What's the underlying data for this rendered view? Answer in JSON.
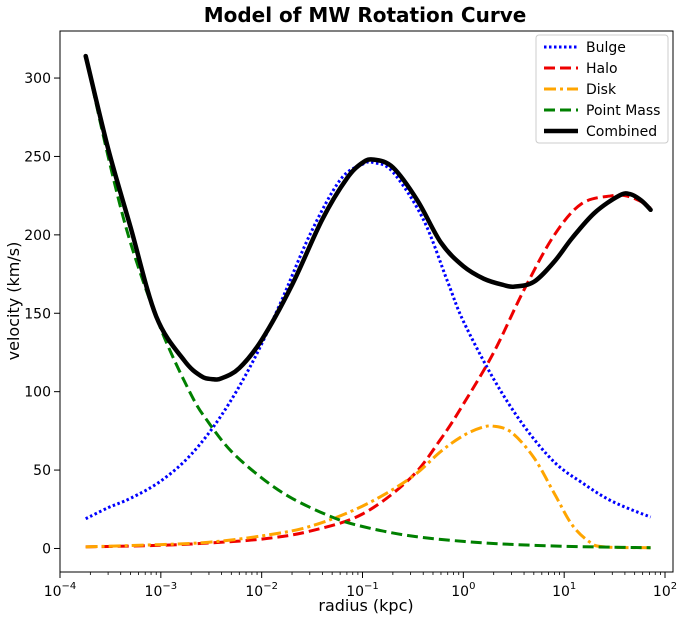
{
  "chart_data": {
    "type": "line",
    "title": "Model of MW Rotation Curve",
    "xlabel": "radius (kpc)",
    "ylabel": "velocity (km/s)",
    "xscale": "log",
    "xlim": [
      0.0001,
      120
    ],
    "ylim": [
      -15,
      330
    ],
    "x_ticks": [
      {
        "value": 0.0001,
        "base": "10",
        "exp": "−4"
      },
      {
        "value": 0.001,
        "base": "10",
        "exp": "−3"
      },
      {
        "value": 0.01,
        "base": "10",
        "exp": "−2"
      },
      {
        "value": 0.1,
        "base": "10",
        "exp": "−1"
      },
      {
        "value": 1,
        "base": "10",
        "exp": "0"
      },
      {
        "value": 10,
        "base": "10",
        "exp": "1"
      },
      {
        "value": 100,
        "base": "10",
        "exp": "2"
      }
    ],
    "y_ticks": [
      0,
      50,
      100,
      150,
      200,
      250,
      300
    ],
    "legend_position": "top-right",
    "grid": false,
    "series": [
      {
        "name": "Bulge",
        "color": "#0000ff",
        "style": "dotted",
        "width": 3,
        "points": [
          [
            0.00018,
            19
          ],
          [
            0.0003,
            26
          ],
          [
            0.0005,
            32
          ],
          [
            0.001,
            43
          ],
          [
            0.002,
            60
          ],
          [
            0.004,
            85
          ],
          [
            0.008,
            118
          ],
          [
            0.015,
            155
          ],
          [
            0.03,
            200
          ],
          [
            0.06,
            235
          ],
          [
            0.1,
            245
          ],
          [
            0.13,
            246
          ],
          [
            0.2,
            240
          ],
          [
            0.4,
            210
          ],
          [
            0.7,
            170
          ],
          [
            1,
            145
          ],
          [
            2,
            108
          ],
          [
            4,
            78
          ],
          [
            8,
            55
          ],
          [
            15,
            42
          ],
          [
            30,
            30
          ],
          [
            72,
            20
          ]
        ]
      },
      {
        "name": "Halo",
        "color": "#ee0000",
        "style": "dashed",
        "width": 3,
        "points": [
          [
            0.00018,
            1
          ],
          [
            0.001,
            2
          ],
          [
            0.003,
            3.5
          ],
          [
            0.01,
            6
          ],
          [
            0.03,
            11
          ],
          [
            0.1,
            22
          ],
          [
            0.3,
            45
          ],
          [
            0.6,
            70
          ],
          [
            1,
            92
          ],
          [
            2,
            125
          ],
          [
            4,
            165
          ],
          [
            8,
            200
          ],
          [
            15,
            220
          ],
          [
            30,
            225
          ],
          [
            40,
            225
          ],
          [
            55,
            222
          ],
          [
            72,
            217
          ]
        ]
      },
      {
        "name": "Disk",
        "color": "#ffa500",
        "style": "dashdot",
        "width": 3,
        "points": [
          [
            0.00018,
            1
          ],
          [
            0.001,
            2.5
          ],
          [
            0.003,
            4
          ],
          [
            0.01,
            8
          ],
          [
            0.03,
            14
          ],
          [
            0.1,
            27
          ],
          [
            0.3,
            45
          ],
          [
            0.6,
            62
          ],
          [
            1,
            72
          ],
          [
            1.5,
            77
          ],
          [
            2,
            78
          ],
          [
            3,
            74
          ],
          [
            5,
            58
          ],
          [
            8,
            35
          ],
          [
            12,
            15
          ],
          [
            18,
            4
          ],
          [
            25,
            1
          ],
          [
            72,
            0.5
          ]
        ]
      },
      {
        "name": "Point Mass",
        "color": "#008000",
        "style": "dashed",
        "width": 3,
        "points": [
          [
            0.00018,
            314
          ],
          [
            0.0003,
            250
          ],
          [
            0.0005,
            195
          ],
          [
            0.001,
            140
          ],
          [
            0.002,
            98
          ],
          [
            0.003,
            80
          ],
          [
            0.005,
            62
          ],
          [
            0.01,
            45
          ],
          [
            0.02,
            32
          ],
          [
            0.05,
            20
          ],
          [
            0.1,
            14
          ],
          [
            0.3,
            8
          ],
          [
            1,
            4.5
          ],
          [
            3,
            2.6
          ],
          [
            10,
            1.4
          ],
          [
            30,
            0.8
          ],
          [
            72,
            0.5
          ]
        ]
      },
      {
        "name": "Combined",
        "color": "#000000",
        "style": "solid",
        "width": 4.5,
        "points": [
          [
            0.00018,
            314
          ],
          [
            0.0003,
            255
          ],
          [
            0.0005,
            205
          ],
          [
            0.0009,
            148
          ],
          [
            0.0017,
            120
          ],
          [
            0.0025,
            110
          ],
          [
            0.0032,
            108
          ],
          [
            0.004,
            108.5
          ],
          [
            0.006,
            115
          ],
          [
            0.01,
            133
          ],
          [
            0.02,
            168
          ],
          [
            0.04,
            210
          ],
          [
            0.07,
            236
          ],
          [
            0.1,
            246
          ],
          [
            0.13,
            248
          ],
          [
            0.2,
            243
          ],
          [
            0.35,
            222
          ],
          [
            0.6,
            195
          ],
          [
            1,
            180
          ],
          [
            1.6,
            172
          ],
          [
            2.5,
            168
          ],
          [
            3.2,
            167
          ],
          [
            5,
            170
          ],
          [
            8,
            183
          ],
          [
            12,
            198
          ],
          [
            20,
            214
          ],
          [
            35,
            225
          ],
          [
            45,
            226
          ],
          [
            58,
            222
          ],
          [
            72,
            216
          ]
        ]
      }
    ]
  }
}
